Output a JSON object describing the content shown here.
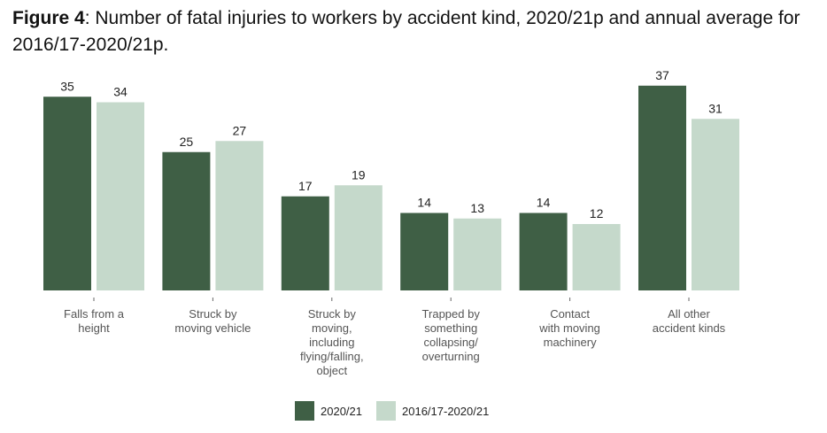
{
  "figure_label": "Figure 4",
  "title_rest": ": Number of fatal injuries to workers by accident kind, 2020/21p and annual average for 2016/17-2020/21p.",
  "colors": {
    "series1": "#3f5f45",
    "series2": "#c5d9cb"
  },
  "chart_data": {
    "type": "bar",
    "title": "Figure 4: Number of fatal injuries to workers by accident kind, 2020/21p and annual average for 2016/17-2020/21p.",
    "xlabel": "",
    "ylabel": "",
    "ylim": [
      0,
      40
    ],
    "grid": false,
    "legend_position": "bottom",
    "categories": [
      [
        "Falls from a",
        "height"
      ],
      [
        "Struck by",
        "moving vehicle"
      ],
      [
        "Struck by",
        "moving,",
        "including",
        "flying/falling,",
        "object"
      ],
      [
        "Trapped by",
        "something",
        "collapsing/",
        "overturning"
      ],
      [
        "Contact",
        "with moving",
        "machinery"
      ],
      [
        "All other",
        "accident kinds"
      ]
    ],
    "series": [
      {
        "name": "2020/21",
        "values": [
          35,
          25,
          17,
          14,
          14,
          37
        ]
      },
      {
        "name": "2016/17-2020/21",
        "values": [
          34,
          27,
          19,
          13,
          12,
          31
        ]
      }
    ]
  }
}
